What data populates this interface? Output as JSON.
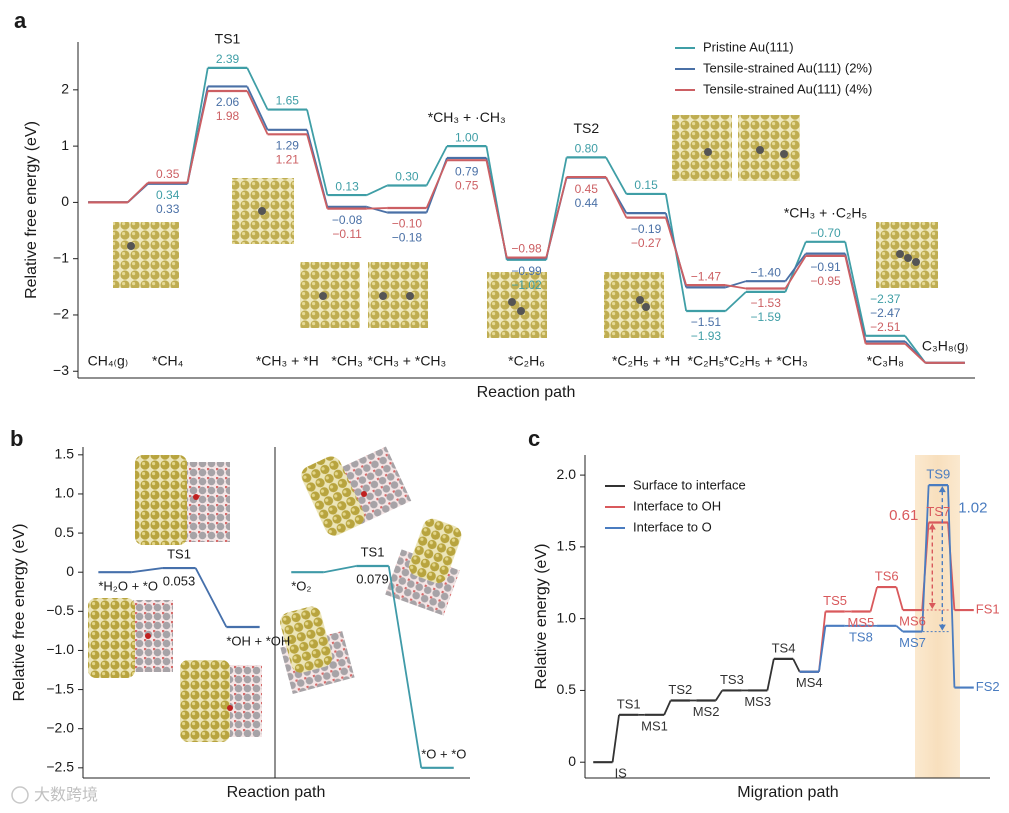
{
  "chart_data": [
    {
      "type": "step",
      "panel": "a",
      "xlabel": "Reaction path",
      "ylabel": "Relative free energy (eV)",
      "categories": [
        "CH₄₍g₎",
        "*CH₄",
        "TS1",
        "*CH₃ + *H",
        "*CH₃",
        "*CH₃ + *CH₃",
        "*CH₃ + ·CH₃",
        "*C₂H₆",
        "TS2",
        "*C₂H₅ + *H",
        "*C₂H₅",
        "*C₂H₅ + *CH₃",
        "*CH₃ + ·C₂H₅",
        "*C₃H₈",
        "C₃H₈₍g₎"
      ],
      "series": [
        {
          "name": "Pristine Au(111)",
          "color": "#3f9ea6",
          "values": [
            0,
            0.34,
            2.39,
            1.65,
            0.13,
            0.3,
            1.0,
            -1.02,
            0.8,
            0.15,
            -1.93,
            -1.59,
            -0.7,
            -2.37,
            -2.85
          ],
          "value_labels": [
            null,
            "0.34",
            "2.39",
            "1.65",
            "0.13",
            "0.30",
            "1.00",
            "−1.02",
            "0.80",
            "0.15",
            "−1.93",
            "−1.59",
            "−0.70",
            "−2.37",
            null
          ]
        },
        {
          "name": "Tensile-strained Au(111) (2%)",
          "color": "#4a70a6",
          "values": [
            0,
            0.33,
            2.06,
            1.29,
            -0.08,
            -0.18,
            0.79,
            -0.99,
            0.44,
            -0.19,
            -1.51,
            -1.4,
            -0.91,
            -2.47,
            -2.85
          ],
          "value_labels": [
            null,
            "0.33",
            "2.06",
            "1.29",
            "−0.08",
            "−0.18",
            "0.79",
            "−0.99",
            "0.44",
            "−0.19",
            "−1.51",
            "−1.40",
            "−0.91",
            "−2.47",
            null
          ]
        },
        {
          "name": "Tensile-strained Au(111) (4%)",
          "color": "#cc5f63",
          "values": [
            0,
            0.35,
            1.98,
            1.21,
            -0.11,
            -0.1,
            0.75,
            -0.98,
            0.45,
            -0.27,
            -1.47,
            -1.53,
            -0.95,
            -2.51,
            -2.85
          ],
          "value_labels": [
            null,
            "0.35",
            "1.98",
            "1.21",
            "−0.11",
            "−0.10",
            "0.75",
            "−0.98",
            "0.45",
            "−0.27",
            "−1.47",
            "−1.53",
            "−0.95",
            "−2.51",
            null
          ]
        }
      ],
      "ylim": [
        -3.12,
        2.85
      ],
      "yticks": [
        {
          "value": -3,
          "label": "−3"
        },
        {
          "value": -2,
          "label": "−2"
        },
        {
          "value": -1,
          "label": "−1"
        },
        0,
        1,
        2
      ],
      "legend": "upper right"
    },
    {
      "type": "step",
      "panel": "b",
      "xlabel": "Reaction path",
      "ylabel": "Relative free energy (eV)",
      "categories": [
        "*H₂O + *O",
        "TS1",
        "*OH + *OH"
      ],
      "values": [
        0,
        0.053,
        -0.7
      ],
      "value_labels": [
        null,
        "0.053",
        null
      ],
      "color": "#4670ab",
      "ylim": [
        -2.63,
        1.6
      ],
      "yticks": [
        1.5,
        {
          "value": 1,
          "label": "1.0"
        },
        0.5,
        0,
        {
          "value": -0.5,
          "label": "−0.5"
        },
        {
          "value": -1,
          "label": "−1.0"
        },
        {
          "value": -1.5,
          "label": "−1.5"
        },
        {
          "value": -2,
          "label": "−2.0"
        },
        {
          "value": -2.5,
          "label": "−2.5"
        }
      ]
    },
    {
      "type": "step",
      "categories": [
        "*O₂",
        "TS1",
        "*O + *O"
      ],
      "values": [
        0,
        0.079,
        -2.5
      ],
      "value_labels": [
        null,
        "0.079",
        null
      ],
      "color": "#3f9aa8",
      "ylim": [
        -2.63,
        1.6
      ]
    },
    {
      "type": "step",
      "panel": "c",
      "xlabel": "Migration path",
      "ylabel": "Relative energy (eV)",
      "categories": [
        "IS",
        "TS1",
        "MS1",
        "TS2",
        "MS2",
        "TS3",
        "MS3",
        "TS4",
        "MS4",
        "TS5",
        "MS5",
        "TS6",
        "MS6",
        "TS7",
        "FS1"
      ],
      "series": [
        {
          "name": "Surface to interface",
          "color": "#333333",
          "values": [
            0,
            0.33,
            0.33,
            0.43,
            0.43,
            0.5,
            0.5,
            0.72,
            0.63,
            null,
            null,
            null,
            null,
            null,
            null
          ]
        },
        {
          "name": "Interface to OH",
          "color": "#d9595c",
          "values": [
            null,
            null,
            null,
            null,
            null,
            null,
            null,
            null,
            0.63,
            1.05,
            1.05,
            1.22,
            1.06,
            1.67,
            1.06
          ],
          "barrier_label": "0.61"
        },
        {
          "name": "Interface to O",
          "color": "#4a7cc0",
          "values": [
            null,
            null,
            null,
            null,
            null,
            null,
            null,
            null,
            0.63,
            0.95,
            0.95,
            0.95,
            0.91,
            1.93,
            0.52
          ],
          "labels": [
            null,
            null,
            null,
            null,
            null,
            null,
            null,
            null,
            null,
            null,
            "TS8",
            null,
            "MS7",
            "TS9",
            "FS2"
          ],
          "barrier_label": "1.02"
        }
      ],
      "ylim": [
        -0.11,
        2.14
      ],
      "yticks": [
        0,
        0.5,
        {
          "value": 1,
          "label": "1.0"
        },
        1.5,
        {
          "value": 2,
          "label": "2.0"
        }
      ],
      "legend": "upper left"
    }
  ],
  "watermark": "大数跨境"
}
